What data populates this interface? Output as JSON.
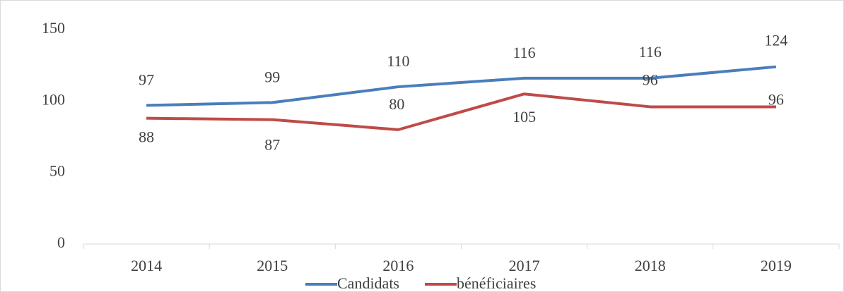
{
  "chart_data": {
    "type": "line",
    "categories": [
      "2014",
      "2015",
      "2016",
      "2017",
      "2018",
      "2019"
    ],
    "series": [
      {
        "name": "Candidats",
        "color": "#4a7ebb",
        "values": [
          97,
          99,
          110,
          116,
          116,
          124
        ]
      },
      {
        "name": "bénéficiaires",
        "color": "#be4b48",
        "values": [
          88,
          87,
          80,
          105,
          96,
          96
        ]
      }
    ],
    "ylim": [
      0,
      150
    ],
    "yticks": [
      0,
      50,
      100,
      150
    ],
    "legend": "bottom"
  }
}
